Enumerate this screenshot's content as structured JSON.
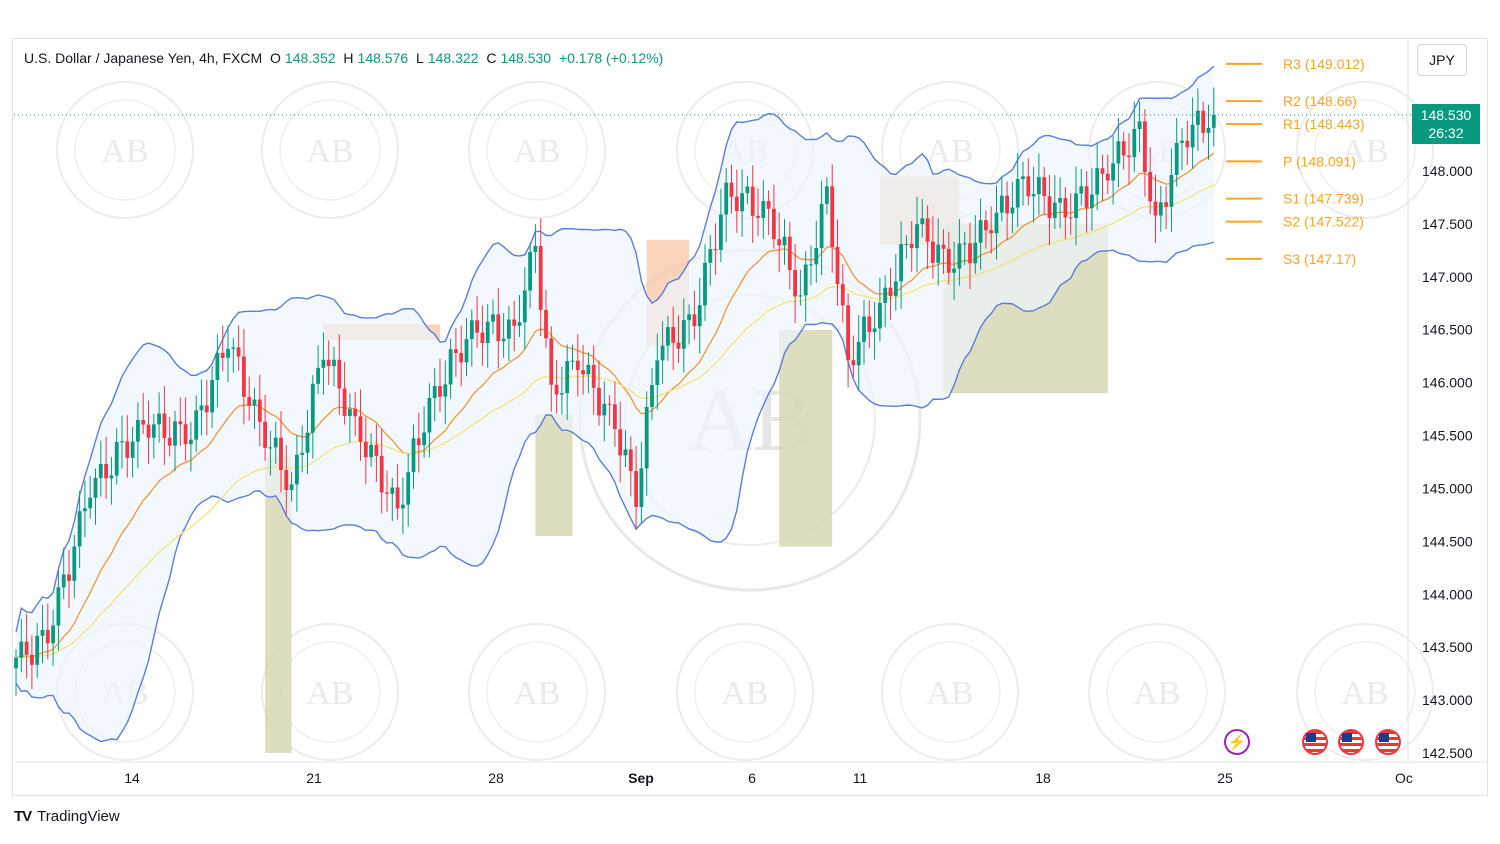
{
  "header": {
    "symbol": "U.S. Dollar / Japanese Yen, 4h, FXCM",
    "o_key": "O",
    "o_val": "148.352",
    "h_key": "H",
    "h_val": "148.576",
    "l_key": "L",
    "l_val": "148.322",
    "c_key": "C",
    "c_val": "148.530",
    "change": "+0.178 (+0.12%)"
  },
  "currency_label": "JPY",
  "last_price": {
    "price": "148.530",
    "countdown": "26:32"
  },
  "brand": {
    "name": "TradingView",
    "mark": "TV"
  },
  "watermark_text": "AB",
  "colors": {
    "up": "#089981",
    "down": "#f23645",
    "bb_band": "#5b7fd6",
    "bb_fill": "#eef5fd",
    "ema_fast": "#f0963a",
    "ema_slow": "#f3e37a",
    "pivot": "#f5a623",
    "zone_sell": "#f7c6a3",
    "zone_buy": "#d6d8b4"
  },
  "events": [
    {
      "icon": "lightning-icon"
    },
    {
      "icon": "us-flag-icon"
    },
    {
      "icon": "us-flag-icon"
    },
    {
      "icon": "us-flag-icon"
    }
  ],
  "chart_data": {
    "type": "candlestick",
    "title": "",
    "timeframe": "4h",
    "y_ticks": [
      "148.000",
      "147.500",
      "147.000",
      "146.500",
      "146.000",
      "145.500",
      "145.000",
      "144.500",
      "144.000",
      "143.500",
      "143.000",
      "142.500"
    ],
    "ylim": [
      142.4,
      149.4
    ],
    "x_ticks": [
      "14",
      "21",
      "28",
      "Sep",
      "6",
      "11",
      "18",
      "25",
      "Oc"
    ],
    "pivots": [
      {
        "label": "R3 (149.012)",
        "value": 149.012
      },
      {
        "label": "R2 (148.66)",
        "value": 148.66
      },
      {
        "label": "R1 (148.443)",
        "value": 148.443
      },
      {
        "label": "P (148.091)",
        "value": 148.091
      },
      {
        "label": "S1 (147.739)",
        "value": 147.739
      },
      {
        "label": "S2 (147.522)",
        "value": 147.522
      },
      {
        "label": "S3 (147.17)",
        "value": 147.17
      }
    ],
    "last_price": 148.53,
    "close_path": [
      {
        "bar": 0,
        "close": 143.4
      },
      {
        "bar": 6,
        "close": 143.6
      },
      {
        "bar": 14,
        "close": 145.0
      },
      {
        "bar": 24,
        "close": 145.6
      },
      {
        "bar": 33,
        "close": 145.5
      },
      {
        "bar": 40,
        "close": 146.4
      },
      {
        "bar": 46,
        "close": 145.6
      },
      {
        "bar": 52,
        "close": 145.0
      },
      {
        "bar": 58,
        "close": 146.3
      },
      {
        "bar": 64,
        "close": 145.6
      },
      {
        "bar": 72,
        "close": 144.8
      },
      {
        "bar": 78,
        "close": 145.8
      },
      {
        "bar": 86,
        "close": 146.5
      },
      {
        "bar": 94,
        "close": 146.5
      },
      {
        "bar": 98,
        "close": 147.3
      },
      {
        "bar": 101,
        "close": 145.9
      },
      {
        "bar": 106,
        "close": 146.2
      },
      {
        "bar": 113,
        "close": 145.6
      },
      {
        "bar": 117,
        "close": 144.9
      },
      {
        "bar": 121,
        "close": 146.3
      },
      {
        "bar": 128,
        "close": 146.6
      },
      {
        "bar": 134,
        "close": 147.8
      },
      {
        "bar": 142,
        "close": 147.6
      },
      {
        "bar": 148,
        "close": 146.8
      },
      {
        "bar": 153,
        "close": 147.8
      },
      {
        "bar": 157,
        "close": 146.2
      },
      {
        "bar": 163,
        "close": 146.7
      },
      {
        "bar": 170,
        "close": 147.5
      },
      {
        "bar": 176,
        "close": 147.1
      },
      {
        "bar": 184,
        "close": 147.5
      },
      {
        "bar": 190,
        "close": 147.9
      },
      {
        "bar": 198,
        "close": 147.6
      },
      {
        "bar": 206,
        "close": 148.0
      },
      {
        "bar": 212,
        "close": 148.4
      },
      {
        "bar": 215,
        "close": 147.5
      },
      {
        "bar": 220,
        "close": 148.3
      },
      {
        "bar": 226,
        "close": 148.53
      }
    ],
    "zones": [
      {
        "kind": "sell",
        "from_bar": 58,
        "to_bar": 80,
        "top": 146.55,
        "bottom": 146.4
      },
      {
        "kind": "sell",
        "from_bar": 119,
        "to_bar": 127,
        "top": 147.35,
        "bottom": 146.35
      },
      {
        "kind": "sell",
        "from_bar": 163,
        "to_bar": 178,
        "top": 147.95,
        "bottom": 147.3
      },
      {
        "kind": "buy",
        "from_bar": 47,
        "to_bar": 52,
        "top": 145.3,
        "bottom": 142.5
      },
      {
        "kind": "buy",
        "from_bar": 98,
        "to_bar": 105,
        "top": 145.7,
        "bottom": 144.55
      },
      {
        "kind": "buy",
        "from_bar": 144,
        "to_bar": 154,
        "top": 146.5,
        "bottom": 144.45
      },
      {
        "kind": "buy",
        "from_bar": 175,
        "to_bar": 206,
        "top": 147.5,
        "bottom": 145.9
      }
    ]
  }
}
